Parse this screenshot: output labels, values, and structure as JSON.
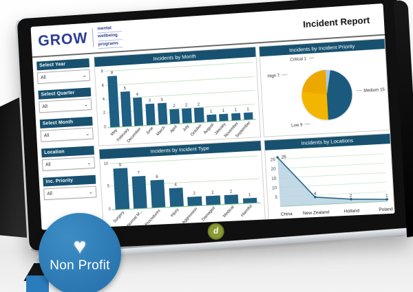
{
  "logo": {
    "name": "GROW",
    "tagline": [
      "mental",
      "wellbeing",
      "programs"
    ]
  },
  "header": {
    "title": "Incident Report"
  },
  "filters": [
    {
      "label": "Select Year",
      "value": "All"
    },
    {
      "label": "Select Quarter",
      "value": "All"
    },
    {
      "label": "Select Month",
      "value": "All"
    },
    {
      "label": "Location",
      "value": "All"
    },
    {
      "label": "Inc. Priority",
      "value": "All"
    }
  ],
  "badge": {
    "label": "Non Profit"
  },
  "icons": {
    "chevron_down": "⌄",
    "heart": "♥",
    "brand_glyph": "d"
  },
  "colors": {
    "primary_blue": "#17516f",
    "bar_blue": "#1e5f83",
    "pie_yellow": "#f2b600",
    "pie_light_blue": "#a9c9e4",
    "badge_blue": "#2e7eb8",
    "grid_green": "#c6e3c9",
    "logo_blue": "#2b3a94"
  },
  "chart_data": [
    {
      "type": "bar",
      "title": "Incidents by Month",
      "categories": [
        "May",
        "February",
        "December",
        "June",
        "March",
        "April",
        "July",
        "October",
        "August",
        "January",
        "November",
        "September"
      ],
      "values": [
        8,
        5,
        4,
        3,
        3,
        2,
        2,
        2,
        1,
        1,
        1,
        1
      ],
      "xlabel": "",
      "ylabel": "",
      "ylim": [
        0,
        8
      ],
      "yticks": [
        0,
        2,
        4,
        6,
        8
      ],
      "bar_color": "#1e5f83",
      "grid": true,
      "legend": "none"
    },
    {
      "type": "pie",
      "title": "Incidents by Incident Priority",
      "slices": [
        {
          "label": "Critical",
          "value": 1,
          "color": "#a9c9e4"
        },
        {
          "label": "Medium",
          "value": 15,
          "color": "#1b5a7d"
        },
        {
          "label": "Low",
          "value": 9,
          "color": "#f2b600"
        },
        {
          "label": "High",
          "value": 7,
          "color": "#eda800"
        }
      ],
      "legend": "data-labels"
    },
    {
      "type": "bar",
      "title": "Incidents by Incident Type",
      "categories": [
        "Surgery",
        "Normal M...",
        "Procedures",
        "Injury",
        "Aggression",
        "Damaged",
        "Medical",
        "Harmful"
      ],
      "values": [
        9,
        7,
        6,
        4,
        2,
        2,
        2,
        1
      ],
      "xlabel": "",
      "ylabel": "",
      "ylim": [
        0,
        10
      ],
      "yticks": [
        0,
        5,
        10
      ],
      "bar_color": "#1e5f83",
      "grid": true,
      "legend": "none"
    },
    {
      "type": "area",
      "title": "Incidents by Locations",
      "categories": [
        "China",
        "New Zealand",
        "Holland",
        "Poland"
      ],
      "values": [
        26,
        4,
        2,
        1
      ],
      "xlabel": "",
      "ylabel": "",
      "ylim": [
        0,
        27
      ],
      "yticks": [
        5,
        10,
        15,
        20,
        25
      ],
      "line_color": "#1b5c80",
      "fill_color": "#b9d2e0",
      "grid": true,
      "legend": "none"
    }
  ]
}
